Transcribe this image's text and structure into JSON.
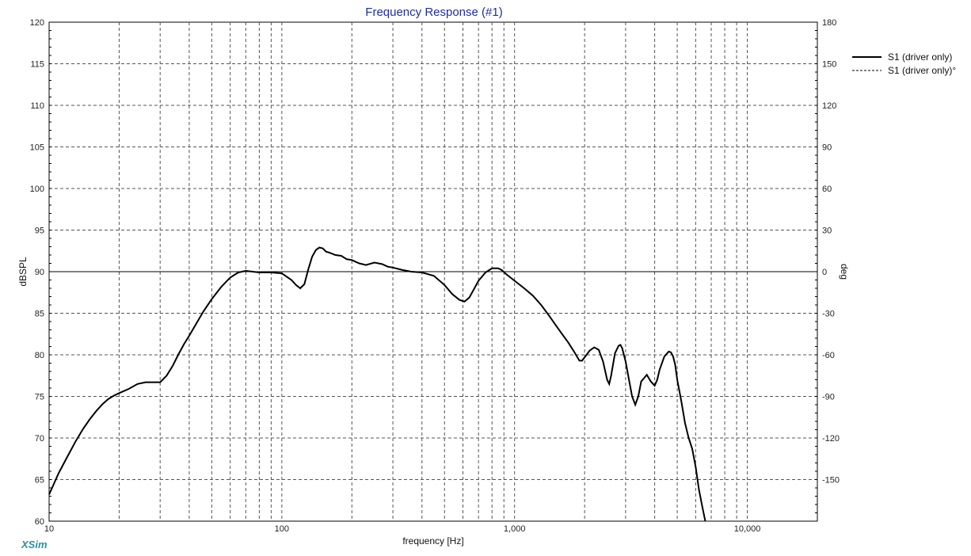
{
  "brand": "XSim",
  "chart_data": {
    "type": "line",
    "title": "Frequency Response (#1)",
    "xlabel": "frequency [Hz]",
    "ylabel": "dBSPL",
    "y2label": "deg",
    "xscale": "log",
    "xlim": [
      10,
      20000
    ],
    "ylim": [
      60,
      120
    ],
    "y2lim": [
      -180,
      180
    ],
    "xticks": [
      10,
      100,
      1000,
      10000
    ],
    "xtick_labels": [
      "10",
      "100",
      "1,000",
      "10,000"
    ],
    "yticks": [
      60,
      65,
      70,
      75,
      80,
      85,
      90,
      95,
      100,
      105,
      110,
      115,
      120
    ],
    "y2ticks": [
      -150,
      -120,
      -90,
      -60,
      -30,
      0,
      30,
      60,
      90,
      120,
      150,
      180
    ],
    "grid": true,
    "legend_position": "top-right",
    "series": [
      {
        "name": "S1 (driver only)",
        "style": "solid",
        "axis": "left",
        "x": [
          10,
          11,
          12,
          13,
          14,
          15,
          16,
          17,
          18,
          19,
          20,
          22,
          24,
          26,
          28,
          30,
          32,
          34,
          36,
          38,
          40,
          43,
          46,
          50,
          55,
          60,
          65,
          70,
          75,
          80,
          90,
          100,
          110,
          115,
          120,
          125,
          130,
          135,
          140,
          145,
          150,
          155,
          160,
          170,
          180,
          190,
          200,
          215,
          230,
          250,
          270,
          285,
          300,
          330,
          360,
          400,
          450,
          500,
          540,
          580,
          610,
          640,
          660,
          700,
          750,
          800,
          850,
          880,
          920,
          1000,
          1100,
          1200,
          1300,
          1400,
          1500,
          1600,
          1700,
          1800,
          1900,
          1950,
          2000,
          2100,
          2200,
          2300,
          2400,
          2500,
          2550,
          2600,
          2700,
          2800,
          2850,
          2900,
          3000,
          3200,
          3300,
          3400,
          3500,
          3700,
          3850,
          4000,
          4100,
          4200,
          4400,
          4600,
          4700,
          4800,
          4900,
          5000,
          5200,
          5400,
          5600,
          5800,
          6000,
          6200,
          6400,
          6600
        ],
        "y": [
          63.2,
          65.8,
          67.8,
          69.6,
          71.1,
          72.3,
          73.3,
          74.1,
          74.7,
          75.1,
          75.4,
          75.9,
          76.5,
          76.7,
          76.7,
          76.7,
          77.5,
          78.7,
          80.1,
          81.3,
          82.3,
          83.8,
          85.2,
          86.7,
          88.2,
          89.3,
          89.9,
          90.1,
          90.0,
          89.9,
          89.9,
          89.8,
          89.0,
          88.4,
          88.0,
          88.5,
          90.3,
          91.8,
          92.6,
          92.9,
          92.8,
          92.4,
          92.3,
          92.0,
          91.9,
          91.5,
          91.4,
          91.0,
          90.8,
          91.1,
          90.9,
          90.6,
          90.5,
          90.2,
          90.0,
          89.9,
          89.5,
          88.4,
          87.3,
          86.6,
          86.4,
          86.9,
          87.6,
          88.9,
          89.9,
          90.4,
          90.4,
          90.2,
          89.7,
          88.9,
          88.0,
          87.1,
          86.0,
          84.8,
          83.6,
          82.5,
          81.5,
          80.4,
          79.3,
          79.3,
          79.7,
          80.5,
          80.9,
          80.6,
          79.2,
          77.0,
          76.5,
          77.5,
          80.2,
          81.1,
          81.2,
          80.8,
          79.2,
          75.0,
          74.0,
          75.0,
          76.8,
          77.6,
          76.8,
          76.3,
          77.0,
          78.2,
          79.8,
          80.4,
          80.3,
          79.8,
          78.8,
          77.0,
          74.5,
          71.8,
          70.0,
          68.7,
          66.5,
          63.8,
          61.8,
          60.0
        ],
        "color": "#000000"
      },
      {
        "name": "S1 (driver only)°",
        "style": "dashed",
        "axis": "right",
        "x": [],
        "y": [],
        "color": "#000000"
      }
    ]
  }
}
